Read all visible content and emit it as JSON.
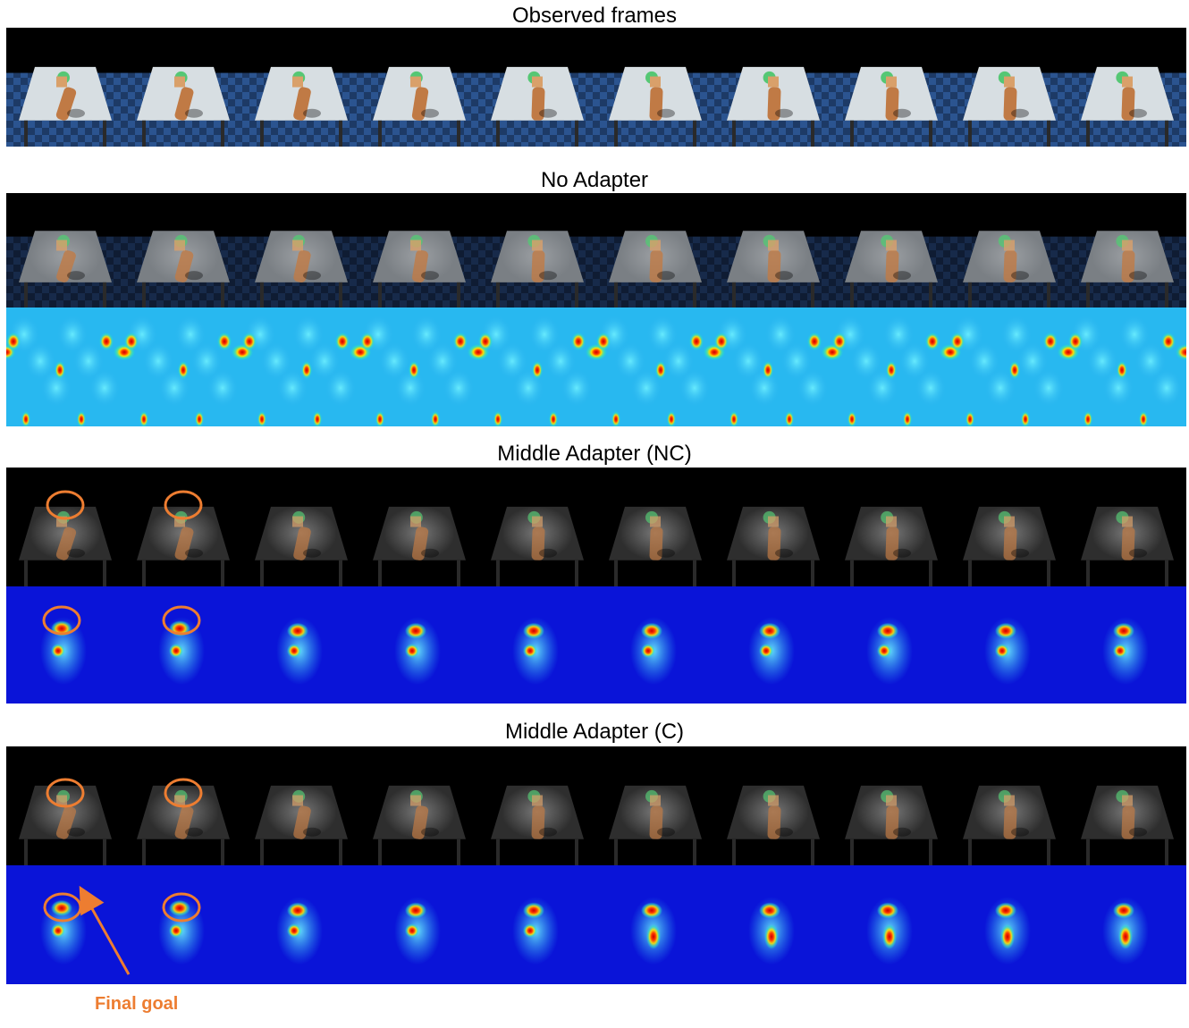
{
  "sections": {
    "observed": {
      "title": "Observed frames"
    },
    "no_adapter": {
      "title": "No Adapter"
    },
    "middle_nc": {
      "title": "Middle Adapter (NC)"
    },
    "middle_c": {
      "title": "Middle Adapter (C)"
    }
  },
  "annotation": {
    "label": "Final goal"
  },
  "frame_count": 10,
  "colors": {
    "annotation": "#ed7d31",
    "floor": "#1d3a66",
    "table": "#d7dee2",
    "heatmap_bg": "#0a14d8",
    "heatmap_cyan": "#28b8f0"
  }
}
